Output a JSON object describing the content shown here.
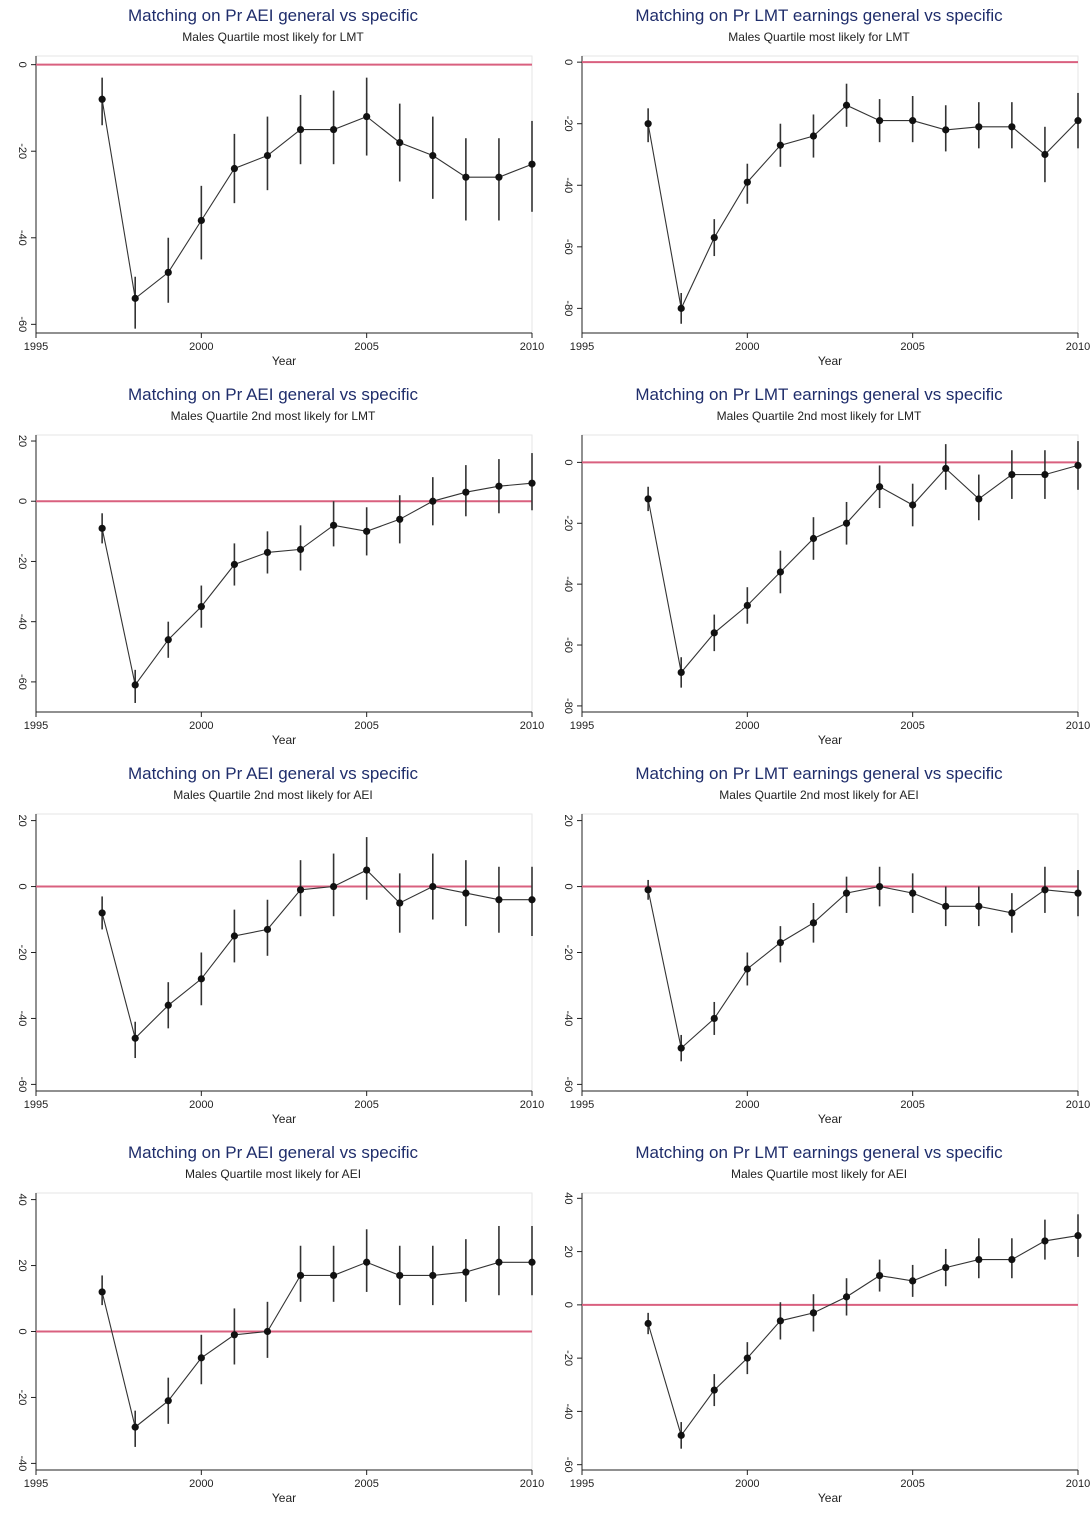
{
  "colors": {
    "reference_line": "#d9607f",
    "series": "#333333",
    "title": "#1f2d6b"
  },
  "chart_data": [
    {
      "type": "line",
      "title": "Matching on Pr AEI general vs specific",
      "subtitle": "Males Quartile most likely for LMT",
      "xlabel": "Year",
      "ylabel": "",
      "xlim": [
        1995,
        2010
      ],
      "ylim": [
        -62,
        2
      ],
      "xticks": [
        1995,
        2000,
        2005,
        2010
      ],
      "yticks": [
        0,
        -20,
        -40,
        -60
      ],
      "reference_y": 0,
      "x": [
        1997,
        1998,
        1999,
        2000,
        2001,
        2002,
        2003,
        2004,
        2005,
        2006,
        2007,
        2008,
        2009,
        2010
      ],
      "values": [
        -8,
        -54,
        -48,
        -36,
        -24,
        -21,
        -15,
        -15,
        -12,
        -18,
        -21,
        -26,
        -26,
        -23
      ],
      "ci_low": [
        -14,
        -61,
        -55,
        -45,
        -32,
        -29,
        -23,
        -23,
        -21,
        -27,
        -31,
        -36,
        -36,
        -34
      ],
      "ci_high": [
        -3,
        -49,
        -40,
        -28,
        -16,
        -12,
        -7,
        -6,
        -3,
        -9,
        -12,
        -17,
        -17,
        -13
      ]
    },
    {
      "type": "line",
      "title": "Matching on Pr LMT earnings general vs specific",
      "subtitle": "Males Quartile most likely for LMT",
      "xlabel": "Year",
      "ylabel": "",
      "xlim": [
        1995,
        2010
      ],
      "ylim": [
        -88,
        2
      ],
      "xticks": [
        1995,
        2000,
        2005,
        2010
      ],
      "yticks": [
        0,
        -20,
        -40,
        -60,
        -80
      ],
      "reference_y": 0,
      "x": [
        1997,
        1998,
        1999,
        2000,
        2001,
        2002,
        2003,
        2004,
        2005,
        2006,
        2007,
        2008,
        2009,
        2010
      ],
      "values": [
        -20,
        -80,
        -57,
        -39,
        -27,
        -24,
        -14,
        -19,
        -19,
        -22,
        -21,
        -21,
        -30,
        -19
      ],
      "ci_low": [
        -26,
        -85,
        -63,
        -46,
        -34,
        -31,
        -21,
        -26,
        -26,
        -29,
        -28,
        -28,
        -39,
        -28
      ],
      "ci_high": [
        -15,
        -75,
        -51,
        -33,
        -20,
        -17,
        -7,
        -12,
        -11,
        -14,
        -13,
        -13,
        -21,
        -10
      ]
    },
    {
      "type": "line",
      "title": "Matching on Pr AEI general vs specific",
      "subtitle": "Males Quartile 2nd most likely for LMT",
      "xlabel": "Year",
      "ylabel": "",
      "xlim": [
        1995,
        2010
      ],
      "ylim": [
        -70,
        22
      ],
      "xticks": [
        1995,
        2000,
        2005,
        2010
      ],
      "yticks": [
        20,
        0,
        -20,
        -40,
        -60
      ],
      "reference_y": 0,
      "x": [
        1997,
        1998,
        1999,
        2000,
        2001,
        2002,
        2003,
        2004,
        2005,
        2006,
        2007,
        2008,
        2009,
        2010
      ],
      "values": [
        -9,
        -61,
        -46,
        -35,
        -21,
        -17,
        -16,
        -8,
        -10,
        -6,
        0,
        3,
        5,
        6
      ],
      "ci_low": [
        -14,
        -67,
        -52,
        -42,
        -28,
        -24,
        -23,
        -15,
        -18,
        -14,
        -8,
        -5,
        -4,
        -3
      ],
      "ci_high": [
        -4,
        -56,
        -40,
        -28,
        -14,
        -10,
        -8,
        0,
        -2,
        2,
        8,
        12,
        14,
        16
      ]
    },
    {
      "type": "line",
      "title": "Matching on Pr LMT earnings general vs specific",
      "subtitle": "Males Quartile 2nd most likely for LMT",
      "xlabel": "Year",
      "ylabel": "",
      "xlim": [
        1995,
        2010
      ],
      "ylim": [
        -82,
        9
      ],
      "xticks": [
        1995,
        2000,
        2005,
        2010
      ],
      "yticks": [
        0,
        -20,
        -40,
        -60,
        -80
      ],
      "reference_y": 0,
      "x": [
        1997,
        1998,
        1999,
        2000,
        2001,
        2002,
        2003,
        2004,
        2005,
        2006,
        2007,
        2008,
        2009,
        2010
      ],
      "values": [
        -12,
        -69,
        -56,
        -47,
        -36,
        -25,
        -20,
        -8,
        -14,
        -2,
        -12,
        -4,
        -4,
        -1
      ],
      "ci_low": [
        -16,
        -74,
        -62,
        -53,
        -43,
        -32,
        -27,
        -15,
        -21,
        -9,
        -19,
        -12,
        -12,
        -9
      ],
      "ci_high": [
        -8,
        -64,
        -50,
        -41,
        -29,
        -18,
        -13,
        -1,
        -7,
        6,
        -4,
        4,
        4,
        7
      ]
    },
    {
      "type": "line",
      "title": "Matching on Pr AEI general vs specific",
      "subtitle": "Males Quartile 2nd most likely for AEI",
      "xlabel": "Year",
      "ylabel": "",
      "xlim": [
        1995,
        2010
      ],
      "ylim": [
        -62,
        22
      ],
      "xticks": [
        1995,
        2000,
        2005,
        2010
      ],
      "yticks": [
        20,
        0,
        -20,
        -40,
        -60
      ],
      "reference_y": 0,
      "x": [
        1997,
        1998,
        1999,
        2000,
        2001,
        2002,
        2003,
        2004,
        2005,
        2006,
        2007,
        2008,
        2009,
        2010
      ],
      "values": [
        -8,
        -46,
        -36,
        -28,
        -15,
        -13,
        -1,
        0,
        5,
        -5,
        0,
        -2,
        -4,
        -4
      ],
      "ci_low": [
        -13,
        -52,
        -43,
        -36,
        -23,
        -21,
        -9,
        -9,
        -4,
        -14,
        -10,
        -12,
        -14,
        -15
      ],
      "ci_high": [
        -3,
        -41,
        -29,
        -20,
        -7,
        -4,
        8,
        10,
        15,
        4,
        10,
        8,
        6,
        6
      ]
    },
    {
      "type": "line",
      "title": "Matching on Pr LMT earnings general vs specific",
      "subtitle": "Males Quartile 2nd most likely for AEI",
      "xlabel": "Year",
      "ylabel": "",
      "xlim": [
        1995,
        2010
      ],
      "ylim": [
        -62,
        22
      ],
      "xticks": [
        1995,
        2000,
        2005,
        2010
      ],
      "yticks": [
        20,
        0,
        -20,
        -40,
        -60
      ],
      "reference_y": 0,
      "x": [
        1997,
        1998,
        1999,
        2000,
        2001,
        2002,
        2003,
        2004,
        2005,
        2006,
        2007,
        2008,
        2009,
        2010
      ],
      "values": [
        -1,
        -49,
        -40,
        -25,
        -17,
        -11,
        -2,
        0,
        -2,
        -6,
        -6,
        -8,
        -1,
        -2
      ],
      "ci_low": [
        -4,
        -53,
        -45,
        -30,
        -23,
        -17,
        -8,
        -6,
        -8,
        -12,
        -12,
        -14,
        -8,
        -9
      ],
      "ci_high": [
        2,
        -45,
        -35,
        -20,
        -12,
        -5,
        3,
        6,
        4,
        0,
        0,
        -2,
        6,
        5
      ]
    },
    {
      "type": "line",
      "title": "Matching on Pr AEI general vs specific",
      "subtitle": "Males Quartile most likely for AEI",
      "xlabel": "Year",
      "ylabel": "",
      "xlim": [
        1995,
        2010
      ],
      "ylim": [
        -42,
        42
      ],
      "xticks": [
        1995,
        2000,
        2005,
        2010
      ],
      "yticks": [
        40,
        20,
        0,
        -20,
        -40
      ],
      "reference_y": 0,
      "x": [
        1997,
        1998,
        1999,
        2000,
        2001,
        2002,
        2003,
        2004,
        2005,
        2006,
        2007,
        2008,
        2009,
        2010
      ],
      "values": [
        12,
        -29,
        -21,
        -8,
        -1,
        0,
        17,
        17,
        21,
        17,
        17,
        18,
        21,
        21
      ],
      "ci_low": [
        8,
        -35,
        -28,
        -16,
        -10,
        -8,
        9,
        9,
        12,
        8,
        8,
        9,
        11,
        11
      ],
      "ci_high": [
        17,
        -24,
        -14,
        -1,
        7,
        9,
        26,
        26,
        31,
        26,
        26,
        28,
        32,
        32
      ]
    },
    {
      "type": "line",
      "title": "Matching on Pr LMT earnings general vs specific",
      "subtitle": "Males Quartile most likely for AEI",
      "xlabel": "Year",
      "ylabel": "",
      "xlim": [
        1995,
        2010
      ],
      "ylim": [
        -62,
        42
      ],
      "xticks": [
        1995,
        2000,
        2005,
        2010
      ],
      "yticks": [
        40,
        20,
        0,
        -20,
        -40,
        -60
      ],
      "reference_y": 0,
      "x": [
        1997,
        1998,
        1999,
        2000,
        2001,
        2002,
        2003,
        2004,
        2005,
        2006,
        2007,
        2008,
        2009,
        2010
      ],
      "values": [
        -7,
        -49,
        -32,
        -20,
        -6,
        -3,
        3,
        11,
        9,
        14,
        17,
        17,
        24,
        26
      ],
      "ci_low": [
        -11,
        -54,
        -38,
        -26,
        -13,
        -10,
        -4,
        5,
        3,
        7,
        10,
        10,
        17,
        18
      ],
      "ci_high": [
        -3,
        -44,
        -26,
        -14,
        1,
        4,
        10,
        17,
        15,
        21,
        25,
        25,
        32,
        34
      ]
    }
  ]
}
